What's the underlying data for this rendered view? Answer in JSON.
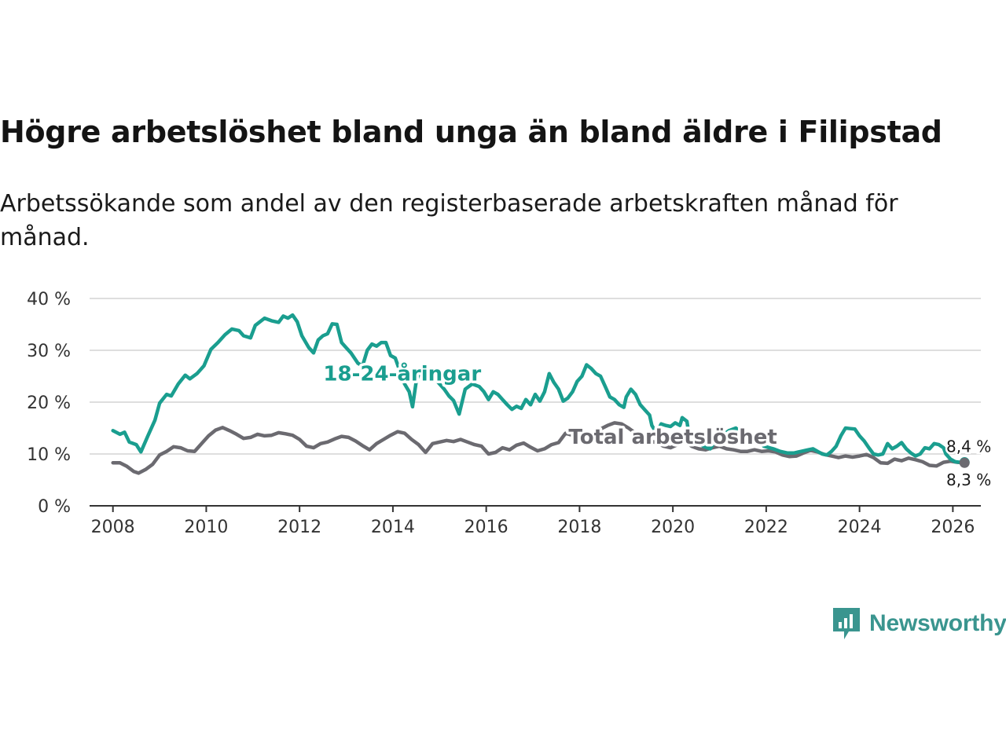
{
  "title": "Högre arbetslöshet bland unga än bland äldre i Filipstad",
  "subtitle": "Arbetssökande som andel av den registerbaserade arbetskraften månad för månad.",
  "logo": {
    "text": "Newsworthy",
    "icon": "newsworthy-bar-chart-icon",
    "color": "#3a958f"
  },
  "chart_data": {
    "type": "line",
    "title": "Högre arbetslöshet bland unga än bland äldre i Filipstad",
    "xlabel": "",
    "ylabel": "",
    "xlim": [
      2007.5,
      2026.6
    ],
    "ylim": [
      0,
      40
    ],
    "x_ticks": [
      2008,
      2010,
      2012,
      2014,
      2016,
      2018,
      2020,
      2022,
      2024,
      2026
    ],
    "x_tick_labels": [
      "2008",
      "2010",
      "2012",
      "2014",
      "2016",
      "2018",
      "2020",
      "2022",
      "2024",
      "2026"
    ],
    "y_ticks": [
      0,
      10,
      20,
      30,
      40
    ],
    "y_tick_labels": [
      "0 %",
      "10 %",
      "20 %",
      "30 %",
      "40 %"
    ],
    "grid": true,
    "series": [
      {
        "name": "18-24-åringar",
        "label": "18-24-åringar",
        "color": "#1a9e8f",
        "end_label": "8,4 %",
        "points": [
          [
            2008.0,
            14.5
          ],
          [
            2008.15,
            13.8
          ],
          [
            2008.25,
            14.2
          ],
          [
            2008.35,
            12.3
          ],
          [
            2008.5,
            11.8
          ],
          [
            2008.6,
            10.4
          ],
          [
            2008.75,
            13.5
          ],
          [
            2008.9,
            16.5
          ],
          [
            2009.0,
            19.8
          ],
          [
            2009.15,
            21.5
          ],
          [
            2009.25,
            21.2
          ],
          [
            2009.4,
            23.5
          ],
          [
            2009.55,
            25.2
          ],
          [
            2009.65,
            24.5
          ],
          [
            2009.8,
            25.5
          ],
          [
            2009.95,
            27.0
          ],
          [
            2010.1,
            30.2
          ],
          [
            2010.25,
            31.5
          ],
          [
            2010.4,
            33.0
          ],
          [
            2010.55,
            34.1
          ],
          [
            2010.7,
            33.8
          ],
          [
            2010.8,
            32.8
          ],
          [
            2010.95,
            32.4
          ],
          [
            2011.05,
            34.8
          ],
          [
            2011.25,
            36.2
          ],
          [
            2011.4,
            35.7
          ],
          [
            2011.55,
            35.4
          ],
          [
            2011.65,
            36.6
          ],
          [
            2011.75,
            36.2
          ],
          [
            2011.85,
            36.8
          ],
          [
            2011.95,
            35.5
          ],
          [
            2012.05,
            32.8
          ],
          [
            2012.2,
            30.5
          ],
          [
            2012.3,
            29.5
          ],
          [
            2012.4,
            32.0
          ],
          [
            2012.5,
            32.8
          ],
          [
            2012.6,
            33.2
          ],
          [
            2012.7,
            35.1
          ],
          [
            2012.8,
            35.0
          ],
          [
            2012.9,
            31.5
          ],
          [
            2013.0,
            30.5
          ],
          [
            2013.1,
            29.5
          ],
          [
            2013.25,
            27.5
          ],
          [
            2013.35,
            27.0
          ],
          [
            2013.45,
            30.0
          ],
          [
            2013.55,
            31.2
          ],
          [
            2013.65,
            30.8
          ],
          [
            2013.75,
            31.5
          ],
          [
            2013.85,
            31.5
          ],
          [
            2013.95,
            29.0
          ],
          [
            2014.05,
            28.5
          ],
          [
            2014.15,
            26.0
          ],
          [
            2014.25,
            23.5
          ],
          [
            2014.35,
            22.0
          ],
          [
            2014.42,
            19.1
          ],
          [
            2014.5,
            24.0
          ],
          [
            2014.6,
            26.5
          ],
          [
            2014.7,
            27.0
          ],
          [
            2014.8,
            25.8
          ],
          [
            2014.9,
            24.5
          ],
          [
            2015.0,
            23.5
          ],
          [
            2015.1,
            22.5
          ],
          [
            2015.2,
            21.2
          ],
          [
            2015.3,
            20.3
          ],
          [
            2015.42,
            17.7
          ],
          [
            2015.55,
            22.5
          ],
          [
            2015.7,
            23.5
          ],
          [
            2015.85,
            23.0
          ],
          [
            2015.95,
            22.0
          ],
          [
            2016.05,
            20.5
          ],
          [
            2016.15,
            22.0
          ],
          [
            2016.25,
            21.5
          ],
          [
            2016.35,
            20.5
          ],
          [
            2016.45,
            19.5
          ],
          [
            2016.55,
            18.6
          ],
          [
            2016.65,
            19.2
          ],
          [
            2016.75,
            18.8
          ],
          [
            2016.85,
            20.5
          ],
          [
            2016.95,
            19.5
          ],
          [
            2017.05,
            21.5
          ],
          [
            2017.15,
            20.2
          ],
          [
            2017.25,
            22.0
          ],
          [
            2017.35,
            25.5
          ],
          [
            2017.45,
            23.8
          ],
          [
            2017.55,
            22.5
          ],
          [
            2017.65,
            20.2
          ],
          [
            2017.75,
            20.8
          ],
          [
            2017.85,
            22.0
          ],
          [
            2017.95,
            24.0
          ],
          [
            2018.05,
            25.0
          ],
          [
            2018.15,
            27.2
          ],
          [
            2018.25,
            26.5
          ],
          [
            2018.35,
            25.5
          ],
          [
            2018.45,
            25.0
          ],
          [
            2018.55,
            23.0
          ],
          [
            2018.65,
            21.0
          ],
          [
            2018.75,
            20.5
          ],
          [
            2018.85,
            19.5
          ],
          [
            2018.95,
            19.0
          ],
          [
            2019.0,
            21.0
          ],
          [
            2019.1,
            22.5
          ],
          [
            2019.2,
            21.5
          ],
          [
            2019.3,
            19.5
          ],
          [
            2019.4,
            18.5
          ],
          [
            2019.5,
            17.5
          ],
          [
            2019.55,
            15.5
          ],
          [
            2019.65,
            14.0
          ],
          [
            2019.75,
            15.8
          ],
          [
            2019.85,
            15.5
          ],
          [
            2019.95,
            15.3
          ],
          [
            2020.05,
            16.0
          ],
          [
            2020.15,
            15.5
          ],
          [
            2020.2,
            17.0
          ],
          [
            2020.3,
            16.3
          ],
          [
            2020.35,
            13.5
          ],
          [
            2020.5,
            12.5
          ],
          [
            2020.65,
            11.5
          ],
          [
            2020.8,
            11.0
          ],
          [
            2020.9,
            12.5
          ],
          [
            2021.05,
            13.5
          ],
          [
            2021.2,
            14.5
          ],
          [
            2021.35,
            15.0
          ],
          [
            2021.5,
            13.8
          ],
          [
            2021.65,
            13.0
          ],
          [
            2021.8,
            12.8
          ],
          [
            2021.95,
            11.5
          ],
          [
            2022.15,
            11.0
          ],
          [
            2022.3,
            10.5
          ],
          [
            2022.45,
            10.2
          ],
          [
            2022.6,
            10.2
          ],
          [
            2022.75,
            10.5
          ],
          [
            2022.9,
            10.8
          ],
          [
            2023.0,
            11.0
          ],
          [
            2023.1,
            10.5
          ],
          [
            2023.2,
            10.0
          ],
          [
            2023.3,
            9.8
          ],
          [
            2023.4,
            10.5
          ],
          [
            2023.5,
            11.5
          ],
          [
            2023.6,
            13.5
          ],
          [
            2023.7,
            15.0
          ],
          [
            2023.8,
            14.9
          ],
          [
            2023.9,
            14.8
          ],
          [
            2024.0,
            13.5
          ],
          [
            2024.1,
            12.5
          ],
          [
            2024.2,
            11.2
          ],
          [
            2024.3,
            10.0
          ],
          [
            2024.4,
            9.8
          ],
          [
            2024.5,
            10.0
          ],
          [
            2024.6,
            12.0
          ],
          [
            2024.7,
            11.0
          ],
          [
            2024.8,
            11.5
          ],
          [
            2024.9,
            12.2
          ],
          [
            2025.0,
            11.0
          ],
          [
            2025.1,
            10.2
          ],
          [
            2025.2,
            9.6
          ],
          [
            2025.3,
            10.0
          ],
          [
            2025.4,
            11.2
          ],
          [
            2025.5,
            11.0
          ],
          [
            2025.6,
            12.0
          ],
          [
            2025.7,
            11.8
          ],
          [
            2025.8,
            11.2
          ],
          [
            2025.85,
            10.0
          ],
          [
            2025.95,
            9.0
          ],
          [
            2026.05,
            8.5
          ],
          [
            2026.15,
            8.4
          ],
          [
            2026.25,
            8.4
          ]
        ]
      },
      {
        "name": "Total arbetslöshet",
        "label": "Total arbetslöshet",
        "color": "#6b6a70",
        "end_label": "8,3 %",
        "points": [
          [
            2008.0,
            8.3
          ],
          [
            2008.15,
            8.3
          ],
          [
            2008.3,
            7.6
          ],
          [
            2008.45,
            6.6
          ],
          [
            2008.55,
            6.3
          ],
          [
            2008.7,
            7.0
          ],
          [
            2008.85,
            8.0
          ],
          [
            2009.0,
            9.8
          ],
          [
            2009.15,
            10.5
          ],
          [
            2009.3,
            11.4
          ],
          [
            2009.45,
            11.2
          ],
          [
            2009.6,
            10.6
          ],
          [
            2009.75,
            10.5
          ],
          [
            2009.9,
            12.0
          ],
          [
            2010.05,
            13.5
          ],
          [
            2010.2,
            14.6
          ],
          [
            2010.35,
            15.1
          ],
          [
            2010.5,
            14.5
          ],
          [
            2010.65,
            13.8
          ],
          [
            2010.8,
            13.0
          ],
          [
            2010.95,
            13.2
          ],
          [
            2011.1,
            13.8
          ],
          [
            2011.25,
            13.5
          ],
          [
            2011.4,
            13.6
          ],
          [
            2011.55,
            14.1
          ],
          [
            2011.7,
            13.9
          ],
          [
            2011.85,
            13.6
          ],
          [
            2012.0,
            12.8
          ],
          [
            2012.15,
            11.5
          ],
          [
            2012.3,
            11.2
          ],
          [
            2012.45,
            12.0
          ],
          [
            2012.6,
            12.3
          ],
          [
            2012.75,
            12.9
          ],
          [
            2012.9,
            13.4
          ],
          [
            2013.05,
            13.2
          ],
          [
            2013.2,
            12.5
          ],
          [
            2013.35,
            11.6
          ],
          [
            2013.5,
            10.8
          ],
          [
            2013.65,
            12.0
          ],
          [
            2013.8,
            12.8
          ],
          [
            2013.95,
            13.6
          ],
          [
            2014.1,
            14.3
          ],
          [
            2014.25,
            14.0
          ],
          [
            2014.4,
            12.8
          ],
          [
            2014.55,
            11.8
          ],
          [
            2014.7,
            10.3
          ],
          [
            2014.85,
            12.0
          ],
          [
            2015.0,
            12.3
          ],
          [
            2015.15,
            12.6
          ],
          [
            2015.3,
            12.4
          ],
          [
            2015.45,
            12.8
          ],
          [
            2015.6,
            12.3
          ],
          [
            2015.75,
            11.8
          ],
          [
            2015.9,
            11.5
          ],
          [
            2016.05,
            10.0
          ],
          [
            2016.2,
            10.3
          ],
          [
            2016.35,
            11.2
          ],
          [
            2016.5,
            10.8
          ],
          [
            2016.65,
            11.7
          ],
          [
            2016.8,
            12.1
          ],
          [
            2016.95,
            11.3
          ],
          [
            2017.1,
            10.6
          ],
          [
            2017.25,
            11.0
          ],
          [
            2017.4,
            11.8
          ],
          [
            2017.55,
            12.2
          ],
          [
            2017.7,
            14.0
          ],
          [
            2017.85,
            13.6
          ],
          [
            2018.0,
            13.2
          ],
          [
            2018.15,
            12.5
          ],
          [
            2018.3,
            13.8
          ],
          [
            2018.45,
            14.8
          ],
          [
            2018.6,
            15.5
          ],
          [
            2018.75,
            16.0
          ],
          [
            2018.9,
            15.8
          ],
          [
            2019.05,
            15.0
          ],
          [
            2019.2,
            14.0
          ],
          [
            2019.35,
            13.2
          ],
          [
            2019.5,
            12.5
          ],
          [
            2019.65,
            12.2
          ],
          [
            2019.8,
            11.5
          ],
          [
            2019.95,
            11.2
          ],
          [
            2020.1,
            11.8
          ],
          [
            2020.25,
            12.5
          ],
          [
            2020.4,
            11.5
          ],
          [
            2020.55,
            11.0
          ],
          [
            2020.7,
            10.8
          ],
          [
            2020.85,
            11.2
          ],
          [
            2021.0,
            11.5
          ],
          [
            2021.15,
            11.0
          ],
          [
            2021.3,
            10.8
          ],
          [
            2021.45,
            10.5
          ],
          [
            2021.6,
            10.5
          ],
          [
            2021.75,
            10.8
          ],
          [
            2021.9,
            10.5
          ],
          [
            2022.05,
            10.6
          ],
          [
            2022.2,
            10.4
          ],
          [
            2022.35,
            9.8
          ],
          [
            2022.5,
            9.5
          ],
          [
            2022.65,
            9.6
          ],
          [
            2022.8,
            10.2
          ],
          [
            2022.95,
            10.7
          ],
          [
            2023.1,
            10.4
          ],
          [
            2023.25,
            9.9
          ],
          [
            2023.4,
            9.6
          ],
          [
            2023.55,
            9.3
          ],
          [
            2023.7,
            9.6
          ],
          [
            2023.85,
            9.4
          ],
          [
            2024.0,
            9.6
          ],
          [
            2024.15,
            9.9
          ],
          [
            2024.3,
            9.3
          ],
          [
            2024.45,
            8.3
          ],
          [
            2024.6,
            8.2
          ],
          [
            2024.75,
            9.0
          ],
          [
            2024.9,
            8.7
          ],
          [
            2025.05,
            9.2
          ],
          [
            2025.2,
            8.9
          ],
          [
            2025.35,
            8.5
          ],
          [
            2025.5,
            7.8
          ],
          [
            2025.65,
            7.7
          ],
          [
            2025.8,
            8.4
          ],
          [
            2025.95,
            8.6
          ],
          [
            2026.1,
            8.4
          ],
          [
            2026.25,
            8.3
          ]
        ]
      }
    ]
  }
}
